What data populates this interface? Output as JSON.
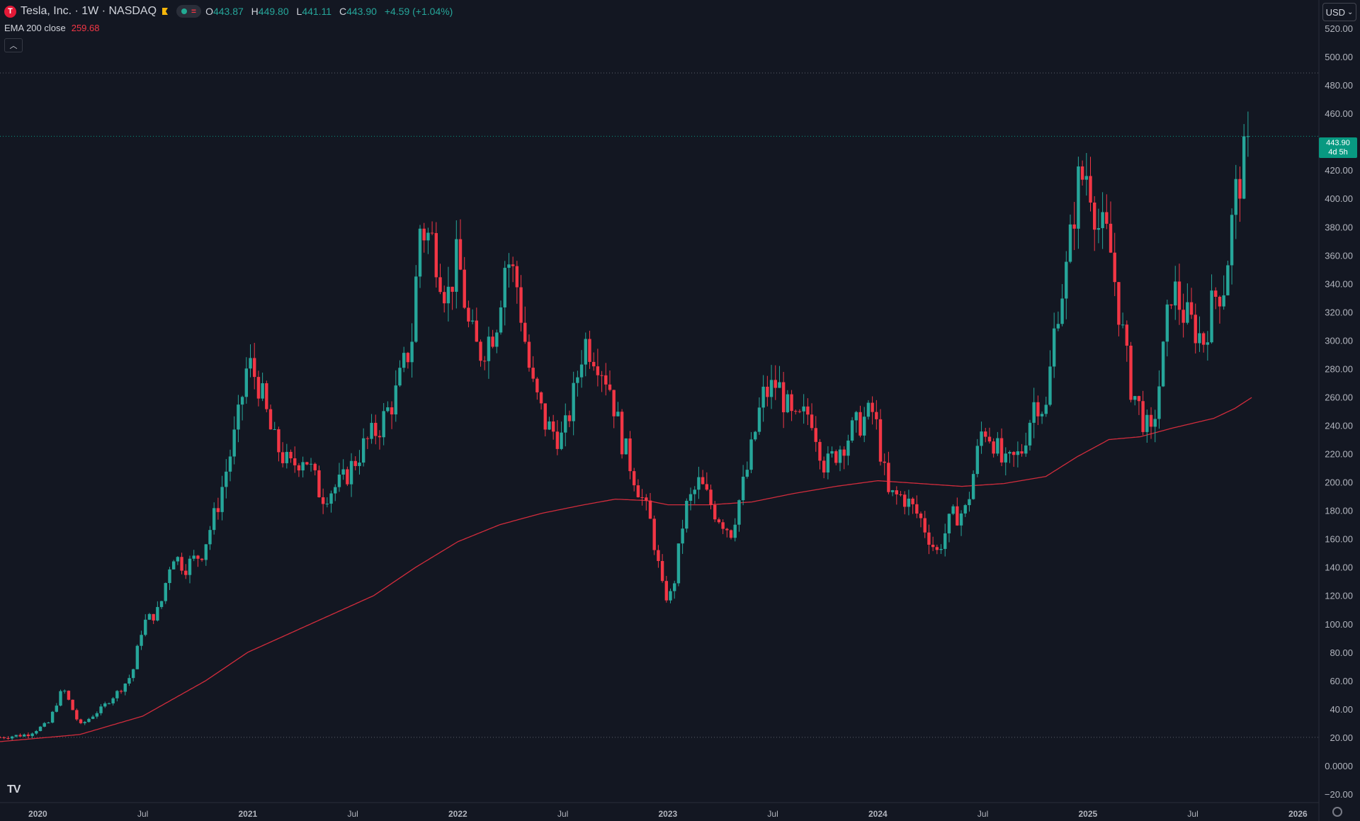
{
  "header": {
    "logo_letter": "T",
    "symbol_title": "Tesla, Inc. · 1W · NASDAQ",
    "ohlc": {
      "o_label": "O",
      "o": "443.87",
      "h_label": "H",
      "h": "449.80",
      "l_label": "L",
      "l": "441.11",
      "c_label": "C",
      "c": "443.90",
      "change": "+4.59 (+1.04%)"
    },
    "flag_color": "#f5b50a"
  },
  "indicator": {
    "name": "EMA 200 close",
    "value": "259.68",
    "color": "#f23645"
  },
  "currency_button": {
    "label": "USD"
  },
  "last_price_tag": {
    "price": "443.90",
    "countdown": "4d 5h",
    "color": "#089981"
  },
  "footer_logo": "TV",
  "colors": {
    "background": "#131722",
    "up": "#26a69a",
    "down": "#f23645",
    "ema": "#d12c3c",
    "grid_dotted": "#5d606b"
  },
  "chart_data": {
    "type": "candlestick",
    "y_axis": {
      "ticks": [
        "520.00",
        "480.00",
        "460.00",
        "440.00",
        "420.00",
        "400.00",
        "380.00",
        "360.00",
        "340.00",
        "320.00",
        "300.00",
        "280.00",
        "260.00",
        "240.00",
        "220.00",
        "200.00",
        "180.00",
        "160.00",
        "140.00",
        "120.00",
        "100.00",
        "80.00",
        "60.00",
        "40.00",
        "20.00",
        "0.0000",
        "−20.00"
      ],
      "extra_ticks": [
        "500.00"
      ],
      "ylim": [
        -26,
        540
      ]
    },
    "x_axis": {
      "ticks": [
        {
          "label": "2020",
          "t": 2020.0,
          "major": true
        },
        {
          "label": "Jul",
          "t": 2020.5,
          "major": false
        },
        {
          "label": "2021",
          "t": 2021.0,
          "major": true
        },
        {
          "label": "Jul",
          "t": 2021.5,
          "major": false
        },
        {
          "label": "2022",
          "t": 2022.0,
          "major": true
        },
        {
          "label": "Jul",
          "t": 2022.5,
          "major": false
        },
        {
          "label": "2023",
          "t": 2023.0,
          "major": true
        },
        {
          "label": "Jul",
          "t": 2023.5,
          "major": false
        },
        {
          "label": "2024",
          "t": 2024.0,
          "major": true
        },
        {
          "label": "Jul",
          "t": 2024.5,
          "major": false
        },
        {
          "label": "2025",
          "t": 2025.0,
          "major": true
        },
        {
          "label": "Jul",
          "t": 2025.5,
          "major": false
        },
        {
          "label": "2026",
          "t": 2026.0,
          "major": true
        }
      ],
      "xlim": [
        2019.82,
        2026.1
      ]
    },
    "horizontal_lines": [
      488.54,
      443.9,
      20.0
    ],
    "price_anchors": [
      [
        2019.82,
        20
      ],
      [
        2019.95,
        22
      ],
      [
        2020.05,
        30
      ],
      [
        2020.12,
        55
      ],
      [
        2020.2,
        28
      ],
      [
        2020.3,
        40
      ],
      [
        2020.4,
        55
      ],
      [
        2020.45,
        65
      ],
      [
        2020.5,
        100
      ],
      [
        2020.58,
        110
      ],
      [
        2020.64,
        150
      ],
      [
        2020.7,
        140
      ],
      [
        2020.78,
        150
      ],
      [
        2020.85,
        180
      ],
      [
        2020.95,
        240
      ],
      [
        2021.0,
        285
      ],
      [
        2021.05,
        270
      ],
      [
        2021.12,
        230
      ],
      [
        2021.2,
        210
      ],
      [
        2021.27,
        220
      ],
      [
        2021.35,
        190
      ],
      [
        2021.45,
        200
      ],
      [
        2021.55,
        225
      ],
      [
        2021.63,
        240
      ],
      [
        2021.7,
        260
      ],
      [
        2021.78,
        300
      ],
      [
        2021.82,
        380
      ],
      [
        2021.88,
        370
      ],
      [
        2021.95,
        330
      ],
      [
        2022.0,
        360
      ],
      [
        2022.05,
        310
      ],
      [
        2022.1,
        290
      ],
      [
        2022.18,
        310
      ],
      [
        2022.23,
        360
      ],
      [
        2022.28,
        340
      ],
      [
        2022.35,
        270
      ],
      [
        2022.42,
        240
      ],
      [
        2022.5,
        230
      ],
      [
        2022.55,
        260
      ],
      [
        2022.6,
        300
      ],
      [
        2022.66,
        290
      ],
      [
        2022.72,
        270
      ],
      [
        2022.78,
        230
      ],
      [
        2022.85,
        200
      ],
      [
        2022.92,
        170
      ],
      [
        2022.98,
        120
      ],
      [
        2023.02,
        120
      ],
      [
        2023.08,
        180
      ],
      [
        2023.15,
        200
      ],
      [
        2023.22,
        180
      ],
      [
        2023.3,
        165
      ],
      [
        2023.38,
        210
      ],
      [
        2023.45,
        260
      ],
      [
        2023.52,
        270
      ],
      [
        2023.6,
        240
      ],
      [
        2023.68,
        250
      ],
      [
        2023.75,
        210
      ],
      [
        2023.82,
        225
      ],
      [
        2023.9,
        240
      ],
      [
        2023.98,
        250
      ],
      [
        2024.05,
        190
      ],
      [
        2024.12,
        190
      ],
      [
        2024.2,
        175
      ],
      [
        2024.28,
        150
      ],
      [
        2024.35,
        175
      ],
      [
        2024.42,
        180
      ],
      [
        2024.5,
        240
      ],
      [
        2024.55,
        230
      ],
      [
        2024.6,
        210
      ],
      [
        2024.68,
        220
      ],
      [
        2024.75,
        260
      ],
      [
        2024.8,
        250
      ],
      [
        2024.85,
        320
      ],
      [
        2024.9,
        350
      ],
      [
        2024.95,
        410
      ],
      [
        2025.0,
        420
      ],
      [
        2025.05,
        380
      ],
      [
        2025.1,
        370
      ],
      [
        2025.15,
        320
      ],
      [
        2025.2,
        270
      ],
      [
        2025.25,
        250
      ],
      [
        2025.3,
        230
      ],
      [
        2025.35,
        280
      ],
      [
        2025.4,
        340
      ],
      [
        2025.45,
        320
      ],
      [
        2025.5,
        310
      ],
      [
        2025.55,
        300
      ],
      [
        2025.6,
        330
      ],
      [
        2025.65,
        340
      ],
      [
        2025.7,
        400
      ],
      [
        2025.75,
        430
      ],
      [
        2025.78,
        443.9
      ]
    ],
    "ema_anchors": [
      [
        2019.82,
        17
      ],
      [
        2020.2,
        22
      ],
      [
        2020.5,
        35
      ],
      [
        2020.8,
        60
      ],
      [
        2021.0,
        80
      ],
      [
        2021.3,
        100
      ],
      [
        2021.6,
        120
      ],
      [
        2021.8,
        140
      ],
      [
        2022.0,
        158
      ],
      [
        2022.2,
        170
      ],
      [
        2022.4,
        178
      ],
      [
        2022.6,
        184
      ],
      [
        2022.75,
        188
      ],
      [
        2022.9,
        187
      ],
      [
        2023.0,
        184
      ],
      [
        2023.2,
        184
      ],
      [
        2023.4,
        186
      ],
      [
        2023.6,
        192
      ],
      [
        2023.8,
        197
      ],
      [
        2024.0,
        201
      ],
      [
        2024.2,
        199
      ],
      [
        2024.4,
        197
      ],
      [
        2024.6,
        199
      ],
      [
        2024.8,
        204
      ],
      [
        2024.95,
        218
      ],
      [
        2025.1,
        230
      ],
      [
        2025.25,
        232
      ],
      [
        2025.4,
        238
      ],
      [
        2025.6,
        245
      ],
      [
        2025.7,
        252
      ],
      [
        2025.78,
        259.68
      ]
    ]
  }
}
